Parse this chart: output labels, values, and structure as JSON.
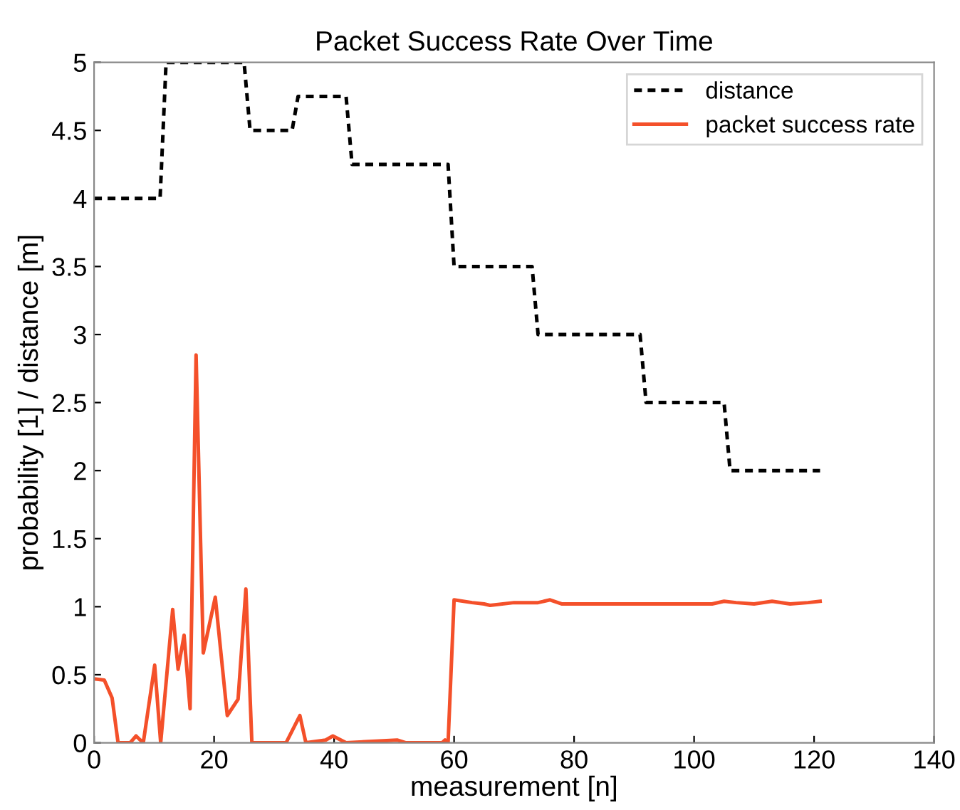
{
  "chart_data": {
    "type": "line",
    "title": "Packet Success Rate Over Time",
    "xlabel": "measurement [n]",
    "ylabel": "probability [1] / distance [m]",
    "xlim": [
      0,
      140
    ],
    "ylim": [
      0,
      5
    ],
    "xticks": [
      0,
      20,
      40,
      60,
      80,
      100,
      120,
      140
    ],
    "yticks": [
      0,
      0.5,
      1,
      1.5,
      2,
      2.5,
      3,
      3.5,
      4,
      4.5,
      5
    ],
    "grid": false,
    "legend": "top right",
    "series": [
      {
        "name": "distance",
        "color": "#000000",
        "line_style": "dashed",
        "x": [
          0,
          11,
          12,
          25,
          26,
          33,
          34,
          42,
          43,
          59,
          60,
          73,
          74,
          91,
          92,
          105,
          106,
          121
        ],
        "values": [
          4,
          4,
          5,
          5,
          4.5,
          4.5,
          4.75,
          4.75,
          4.25,
          4.25,
          3.5,
          3.5,
          3,
          3,
          2.5,
          2.5,
          2,
          2
        ]
      },
      {
        "name": "packet success rate",
        "color": "#f4502a",
        "line_style": "solid",
        "x": [
          0,
          1.7,
          3,
          4,
          6,
          7,
          7.7,
          8.2,
          10.1,
          11.1,
          13.1,
          14,
          15,
          16,
          17,
          18.2,
          20.2,
          22.2,
          24,
          25.3,
          26.3,
          32,
          34.3,
          35.3,
          38.6,
          39.8,
          42,
          50.5,
          52,
          58,
          58.5,
          59,
          60,
          63,
          65,
          66,
          70,
          72,
          74,
          76,
          78,
          85,
          95,
          103,
          105,
          107,
          110,
          113,
          116,
          119,
          121
        ],
        "values": [
          0.47,
          0.46,
          0.33,
          0,
          0,
          0.05,
          0.02,
          0,
          0.57,
          0,
          0.98,
          0.54,
          0.79,
          0.25,
          2.85,
          0.66,
          1.07,
          0.2,
          0.32,
          1.13,
          0,
          0,
          0.2,
          0,
          0.02,
          0.05,
          0,
          0.02,
          0,
          0,
          0.02,
          0,
          1.05,
          1.03,
          1.02,
          1.01,
          1.03,
          1.03,
          1.03,
          1.05,
          1.02,
          1.02,
          1.02,
          1.02,
          1.04,
          1.03,
          1.02,
          1.04,
          1.02,
          1.03,
          1.04
        ]
      }
    ]
  }
}
